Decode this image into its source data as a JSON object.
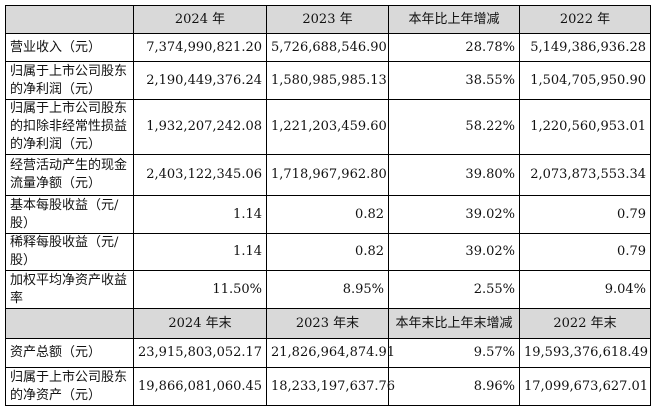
{
  "table": {
    "header": [
      "2024 年",
      "2023 年",
      "本年比上年增减",
      "2022 年"
    ],
    "rows": [
      [
        "营业收入（元）",
        "7,374,990,821.20",
        "5,726,688,546.90",
        "28.78%",
        "5,149,386,936.28"
      ],
      [
        "归属于上市公司股东的净利润（元）",
        "2,190,449,376.24",
        "1,580,985,985.13",
        "38.55%",
        "1,504,705,950.90"
      ],
      [
        "归属于上市公司股东的扣除非经常性损益的净利润（元）",
        "1,932,207,242.08",
        "1,221,203,459.60",
        "58.22%",
        "1,220,560,953.01"
      ],
      [
        "经营活动产生的现金流量净额（元）",
        "2,403,122,345.06",
        "1,718,967,962.80",
        "39.80%",
        "2,073,873,553.34"
      ],
      [
        "基本每股收益（元/股）",
        "1.14",
        "0.82",
        "39.02%",
        "0.79"
      ],
      [
        "稀释每股收益（元/股）",
        "1.14",
        "0.82",
        "39.02%",
        "0.79"
      ],
      [
        "加权平均净资产收益率",
        "11.50%",
        "8.95%",
        "2.55%",
        "9.04%"
      ]
    ],
    "header2": [
      "2024 年末",
      "2023 年末",
      "本年末比上年末增减",
      "2022 年末"
    ],
    "rows2": [
      [
        "资产总额（元）",
        "23,915,803,052.17",
        "21,826,964,874.91",
        "9.57%",
        "19,593,376,618.49"
      ],
      [
        "归属于上市公司股东的净资产（元）",
        "19,866,081,060.45",
        "18,233,197,637.76",
        "8.96%",
        "17,099,673,627.01"
      ]
    ]
  }
}
